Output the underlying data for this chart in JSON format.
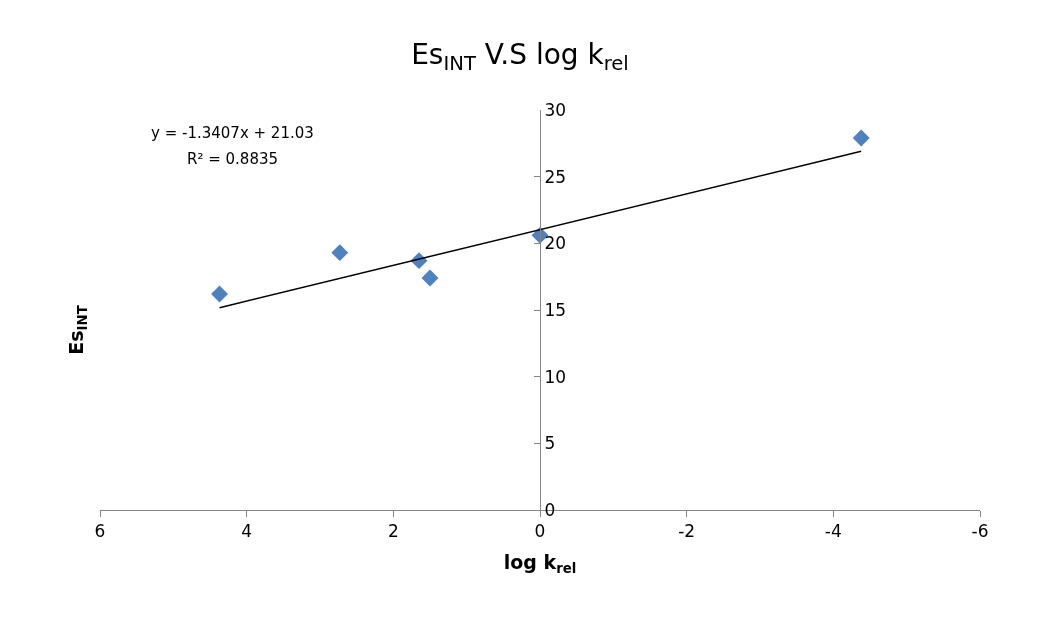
{
  "chart_data": {
    "type": "scatter",
    "title": "Es$_{INT}$ V.S log k$_{rel}$",
    "xlabel": "log k$_{rel}$",
    "ylabel": "Es$_{INT}$",
    "x": [
      4.37,
      2.73,
      1.65,
      1.5,
      0,
      -4.38
    ],
    "series": [
      {
        "color": "#4f81bd",
        "values": [
          16.2,
          19.3,
          18.7,
          17.4,
          20.6,
          27.9
        ],
        "marker": "diamond"
      },
      {
        "type": "line",
        "color": "#000000",
        "x": [
          4.37,
          -4.38
        ],
        "values": [
          15.17,
          26.9
        ],
        "marker": "none",
        "line_style": "solid"
      }
    ],
    "annotations": [
      "y = -1.3407x + 21.03",
      "R² = 0.8835"
    ],
    "xlim": [
      6,
      -6
    ],
    "xticks": [
      6,
      4,
      2,
      0,
      -2,
      -4,
      -6
    ],
    "ylim": [
      0,
      30
    ],
    "yticks": [
      0,
      5,
      10,
      15,
      20,
      25,
      30
    ]
  }
}
